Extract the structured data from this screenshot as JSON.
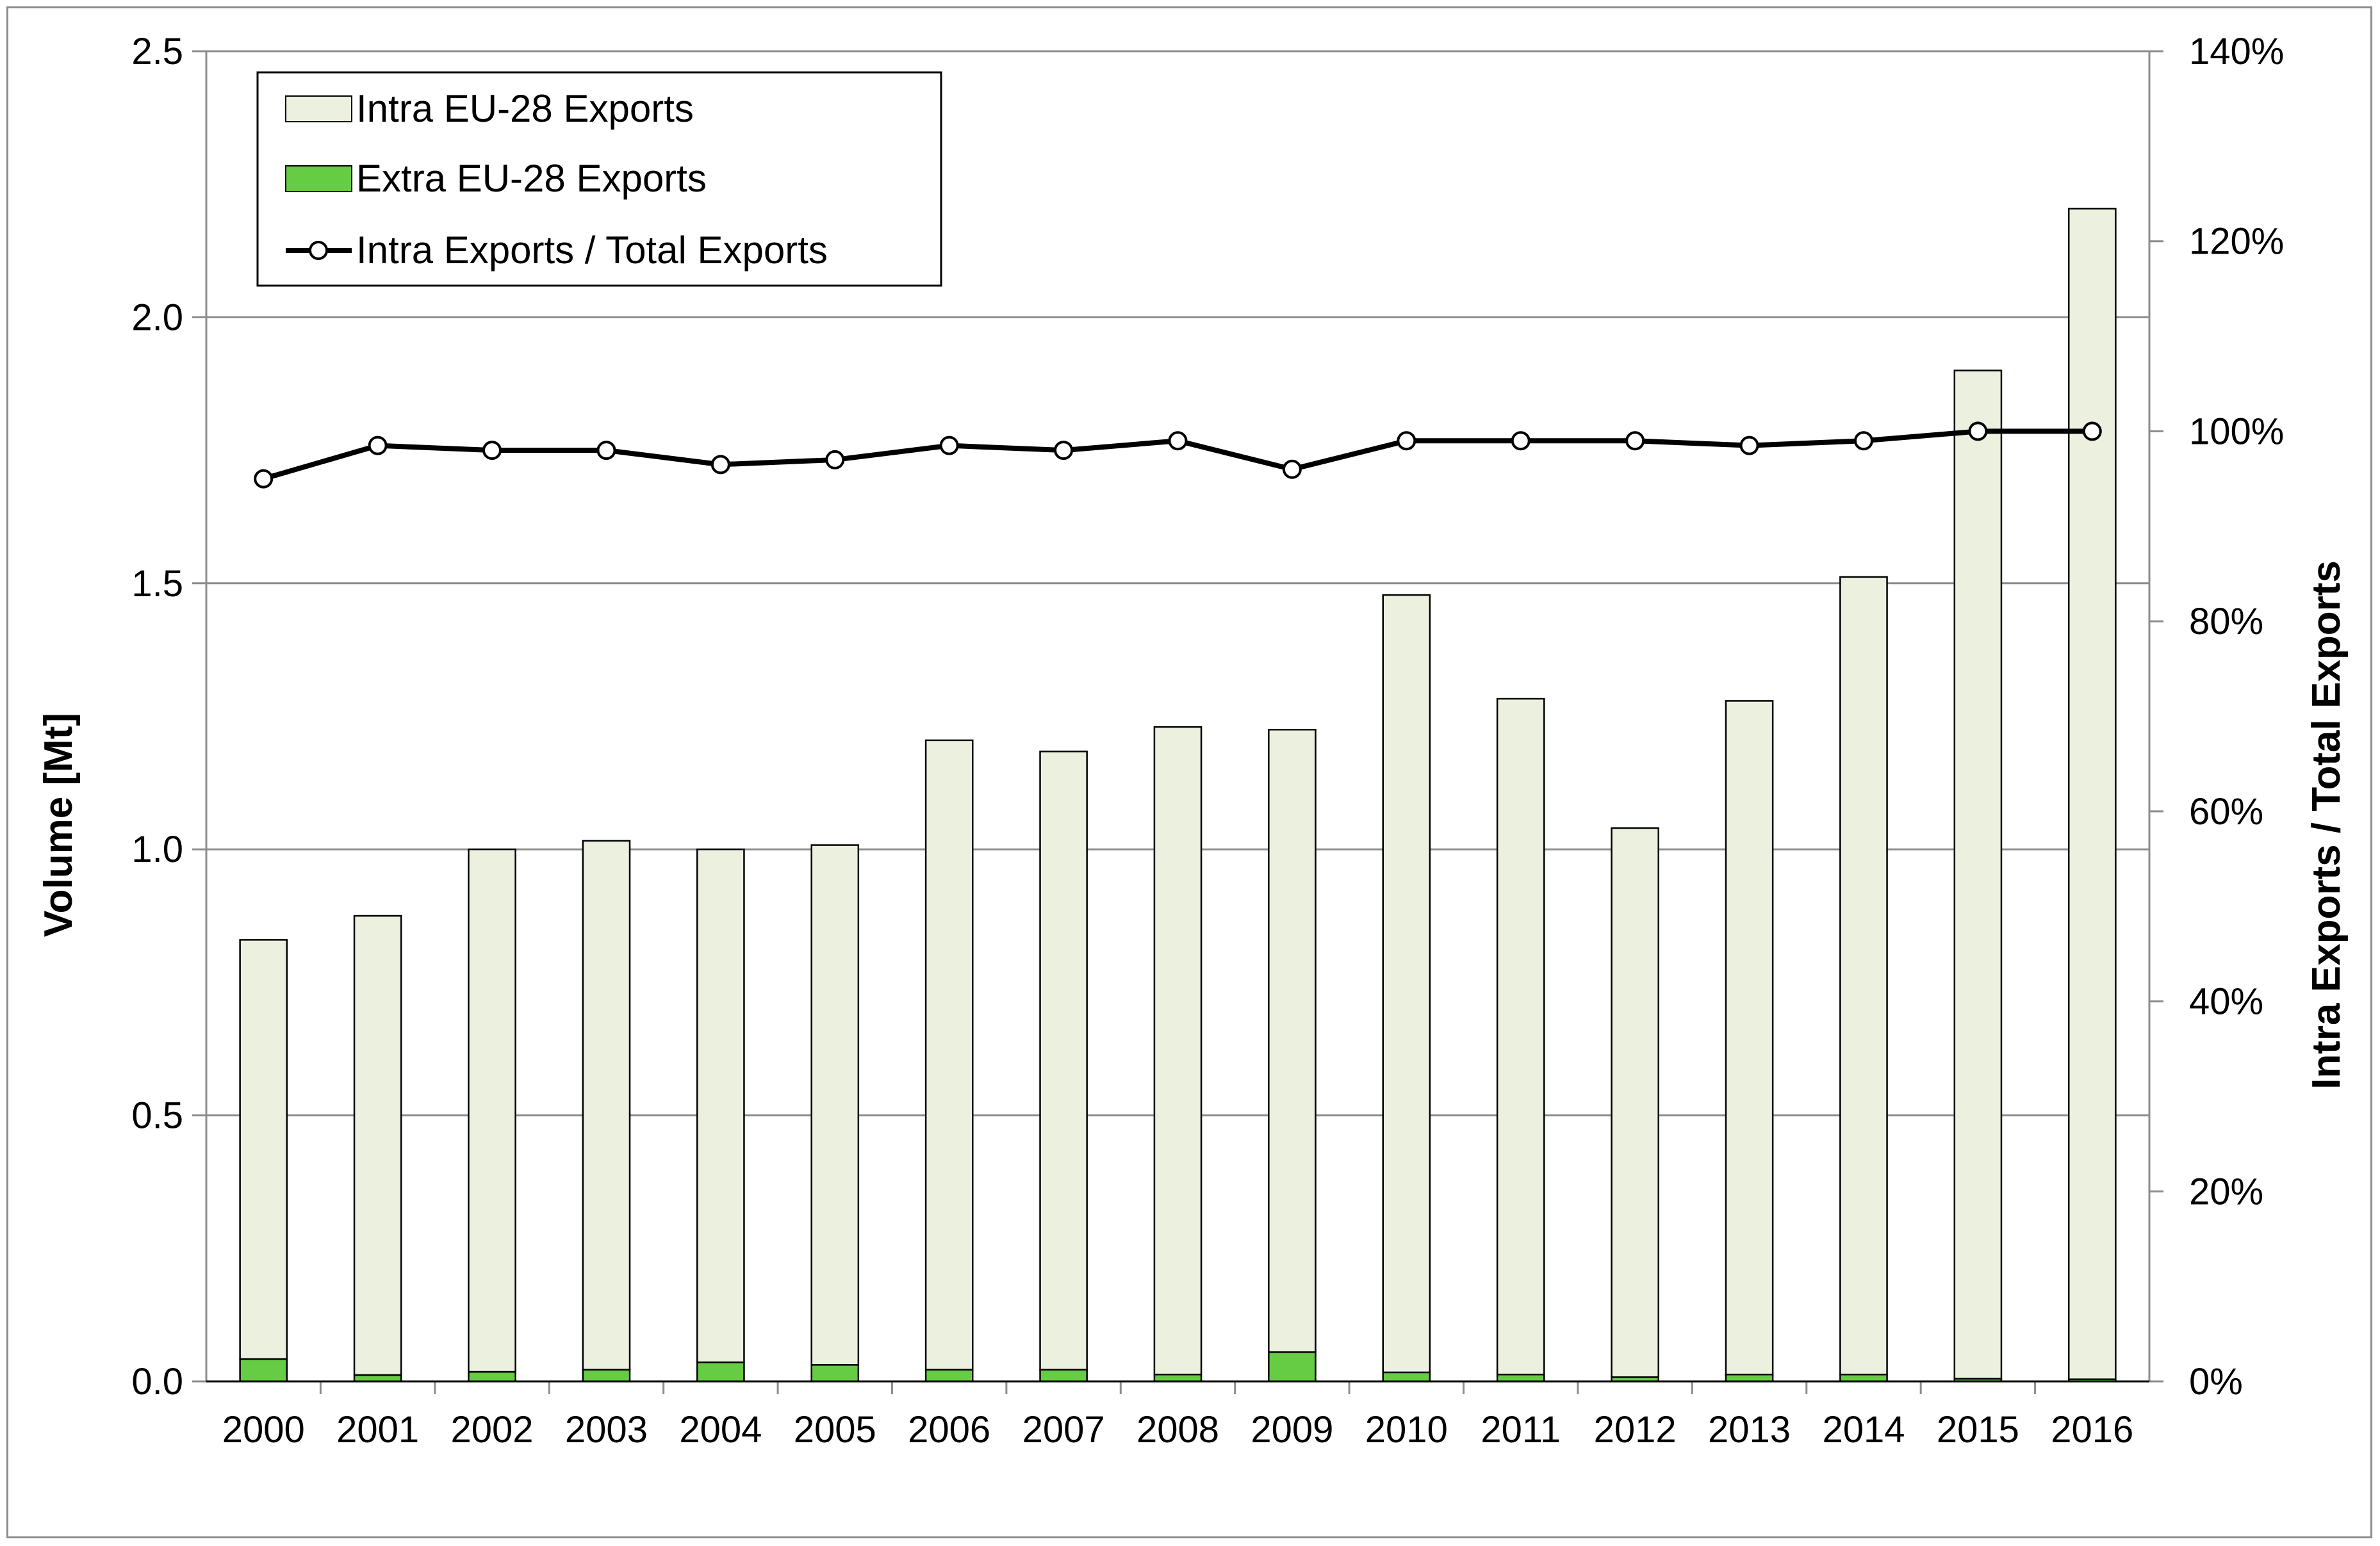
{
  "chart_data": {
    "type": "bar",
    "stacked": true,
    "categories": [
      "2000",
      "2001",
      "2002",
      "2003",
      "2004",
      "2005",
      "2006",
      "2007",
      "2008",
      "2009",
      "2010",
      "2011",
      "2012",
      "2013",
      "2014",
      "2015",
      "2016"
    ],
    "series": [
      {
        "name": "Intra EU-28 Exports",
        "kind": "bar",
        "axis": "left",
        "color": "#ebf1de",
        "values": [
          0.788,
          0.863,
          0.982,
          0.994,
          0.964,
          0.977,
          1.183,
          1.162,
          1.217,
          1.17,
          1.461,
          1.27,
          1.032,
          1.266,
          1.499,
          1.895,
          2.2
        ]
      },
      {
        "name": "Extra EU-28 Exports",
        "kind": "bar",
        "axis": "left",
        "color": "#66cc44",
        "values": [
          0.042,
          0.012,
          0.018,
          0.022,
          0.036,
          0.031,
          0.022,
          0.022,
          0.013,
          0.055,
          0.017,
          0.013,
          0.008,
          0.013,
          0.013,
          0.005,
          0.004
        ]
      },
      {
        "name": "Intra Exports / Total Exports",
        "kind": "line",
        "axis": "right",
        "color": "#000000",
        "values": [
          0.95,
          0.985,
          0.98,
          0.98,
          0.965,
          0.97,
          0.985,
          0.98,
          0.99,
          0.96,
          0.99,
          0.99,
          0.99,
          0.985,
          0.99,
          1.0,
          1.0
        ]
      }
    ],
    "ylabel": "Volume [Mt]",
    "y2label": "Intra Exports / Total Exports",
    "ylim": [
      0,
      2.5
    ],
    "y2lim": [
      0,
      1.4
    ],
    "yticks": [
      "0.0",
      "0.5",
      "1.0",
      "1.5",
      "2.0",
      "2.5"
    ],
    "y2ticks": [
      "0%",
      "20%",
      "40%",
      "60%",
      "80%",
      "100%",
      "120%",
      "140%"
    ],
    "grid": true,
    "legend_position": "top-left"
  }
}
